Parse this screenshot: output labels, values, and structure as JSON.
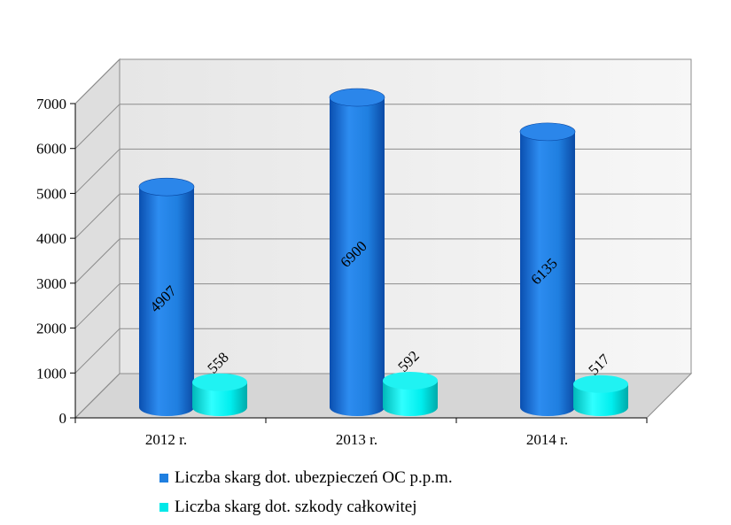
{
  "chart_data": {
    "type": "bar",
    "categories": [
      "2012 r.",
      "2013 r.",
      "2014 r."
    ],
    "series": [
      {
        "name": "Liczba skarg dot. ubezpieczeń OC p.p.m.",
        "values": [
          4907,
          6900,
          6135
        ],
        "color": "#1f7fe0"
      },
      {
        "name": "Liczba skarg dot. szkody całkowitej",
        "values": [
          558,
          592,
          517
        ],
        "color": "#00e8e8"
      }
    ],
    "y_ticks": [
      0,
      1000,
      2000,
      3000,
      4000,
      5000,
      6000,
      7000
    ],
    "ylim": [
      0,
      7000
    ],
    "grid": true,
    "legend_position": "bottom",
    "style": "3d-cylinder"
  }
}
